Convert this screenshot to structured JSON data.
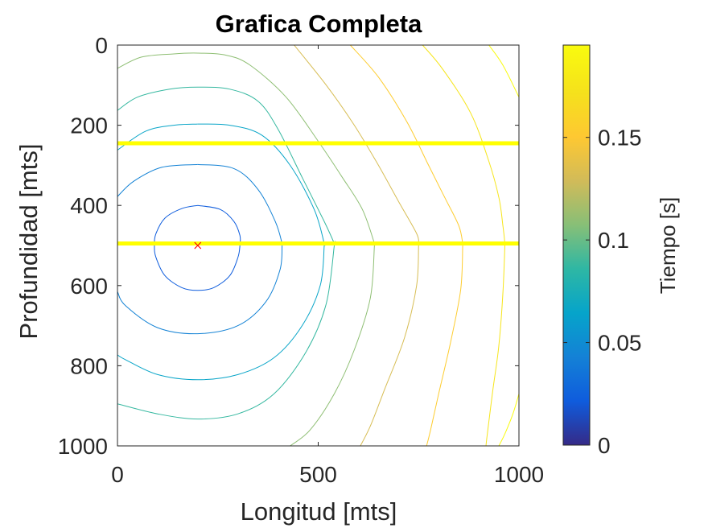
{
  "chart_data": {
    "type": "contour",
    "title": "Grafica Completa",
    "xlabel": "Longitud [mts]",
    "ylabel": "Profundidad [mts]",
    "xlim": [
      0,
      1000
    ],
    "ylim": [
      0,
      1000
    ],
    "y_reversed": true,
    "xticks": [
      0,
      500,
      1000
    ],
    "xtick_labels": [
      "0",
      "500",
      "1000"
    ],
    "yticks": [
      0,
      200,
      400,
      600,
      800,
      1000
    ],
    "ytick_labels": [
      "0",
      "200",
      "400",
      "600",
      "800",
      "1000"
    ],
    "grid": false,
    "colormap": "parula",
    "colorbar": {
      "label": "Tiempo [s]",
      "range": [
        0,
        0.195
      ],
      "ticks": [
        0,
        0.05,
        0.1,
        0.15
      ],
      "tick_labels": [
        "0",
        "0.05",
        "0.1",
        "0.15"
      ]
    },
    "source": {
      "x": 200,
      "y": 500,
      "marker": "x",
      "color": "#ff0000"
    },
    "interfaces": [
      {
        "depth": 245,
        "color": "#ffff00"
      },
      {
        "depth": 495,
        "color": "#ffff00"
      }
    ],
    "contour_levels": [
      0.0219,
      0.0438,
      0.0657,
      0.0876,
      0.1095,
      0.1314,
      0.1533,
      0.1752,
      0.1971
    ],
    "contours": [
      {
        "level": 0.0219,
        "segments": [
          [
            [
              200,
              400
            ],
            [
              256,
              410
            ],
            [
              290,
              440
            ],
            [
              305,
              475
            ],
            [
              305,
              500
            ],
            [
              300,
              530
            ],
            [
              280,
              575
            ],
            [
              240,
              605
            ],
            [
              200,
              612
            ],
            [
              160,
              605
            ],
            [
              118,
              575
            ],
            [
              96,
              530
            ],
            [
              92,
              500
            ],
            [
              96,
              470
            ],
            [
              118,
              432
            ],
            [
              160,
              408
            ],
            [
              200,
              400
            ]
          ]
        ]
      },
      {
        "level": 0.0438,
        "segments": [
          [
            [
              200,
              298
            ],
            [
              290,
              308
            ],
            [
              350,
              360
            ],
            [
              393,
              440
            ],
            [
              410,
              495
            ],
            [
              410,
              500
            ],
            [
              405,
              560
            ],
            [
              370,
              640
            ],
            [
              300,
              700
            ],
            [
              200,
              720
            ],
            [
              100,
              705
            ],
            [
              20,
              650
            ],
            [
              0,
              615
            ]
          ],
          [
            [
              0,
              378
            ],
            [
              40,
              340
            ],
            [
              110,
              305
            ],
            [
              200,
              298
            ]
          ]
        ]
      },
      {
        "level": 0.0657,
        "segments": [
          [
            [
              200,
              197
            ],
            [
              280,
              200
            ],
            [
              360,
              225
            ],
            [
              430,
              300
            ],
            [
              490,
              410
            ],
            [
              515,
              495
            ],
            [
              515,
              500
            ],
            [
              505,
              600
            ],
            [
              460,
              700
            ],
            [
              390,
              780
            ],
            [
              300,
              822
            ],
            [
              200,
              835
            ],
            [
              100,
              822
            ],
            [
              20,
              785
            ],
            [
              0,
              773
            ]
          ],
          [
            [
              0,
              262
            ],
            [
              70,
              215
            ],
            [
              140,
              200
            ],
            [
              200,
              197
            ]
          ]
        ]
      },
      {
        "level": 0.0876,
        "segments": [
          [
            [
              0,
              163
            ],
            [
              50,
              130
            ],
            [
              130,
              110
            ],
            [
              200,
              105
            ],
            [
              280,
              110
            ],
            [
              350,
              140
            ],
            [
              400,
              210
            ],
            [
              460,
              330
            ],
            [
              515,
              440
            ],
            [
              540,
              495
            ],
            [
              540,
              500
            ],
            [
              520,
              645
            ],
            [
              470,
              765
            ],
            [
              390,
              870
            ],
            [
              300,
              920
            ],
            [
              200,
              933
            ],
            [
              100,
              920
            ],
            [
              0,
              895
            ]
          ]
        ]
      },
      {
        "level": 0.1095,
        "segments": [
          [
            [
              0,
              58
            ],
            [
              60,
              30
            ],
            [
              140,
              22
            ],
            [
              200,
              20
            ],
            [
              270,
              25
            ],
            [
              330,
              50
            ],
            [
              420,
              130
            ],
            [
              500,
              240
            ],
            [
              560,
              330
            ],
            [
              610,
              410
            ],
            [
              640,
              495
            ],
            [
              640,
              500
            ],
            [
              630,
              630
            ],
            [
              590,
              760
            ],
            [
              540,
              870
            ],
            [
              480,
              960
            ],
            [
              430,
              1000
            ]
          ]
        ]
      },
      {
        "level": 0.1314,
        "segments": [
          [
            [
              440,
              0
            ],
            [
              520,
              100
            ],
            [
              590,
              200
            ],
            [
              650,
              300
            ],
            [
              700,
              390
            ],
            [
              745,
              470
            ],
            [
              750,
              495
            ],
            [
              750,
              500
            ],
            [
              745,
              600
            ],
            [
              715,
              730
            ],
            [
              665,
              860
            ],
            [
              630,
              950
            ],
            [
              605,
              1000
            ]
          ]
        ]
      },
      {
        "level": 0.1533,
        "segments": [
          [
            [
              580,
              0
            ],
            [
              650,
              80
            ],
            [
              720,
              190
            ],
            [
              775,
              300
            ],
            [
              815,
              380
            ],
            [
              850,
              450
            ],
            [
              860,
              495
            ],
            [
              860,
              500
            ],
            [
              855,
              610
            ],
            [
              830,
              740
            ],
            [
              800,
              870
            ],
            [
              780,
              960
            ],
            [
              770,
              1000
            ]
          ]
        ]
      },
      {
        "level": 0.1752,
        "segments": [
          [
            [
              760,
              0
            ],
            [
              810,
              60
            ],
            [
              880,
              170
            ],
            [
              925,
              290
            ],
            [
              950,
              380
            ],
            [
              960,
              450
            ],
            [
              965,
              495
            ],
            [
              965,
              500
            ],
            [
              960,
              620
            ],
            [
              950,
              750
            ],
            [
              935,
              860
            ],
            [
              920,
              980
            ],
            [
              918,
              1000
            ]
          ]
        ]
      },
      {
        "level": 0.1971,
        "segments": [
          [
            [
              925,
              0
            ],
            [
              960,
              50
            ],
            [
              1000,
              130
            ]
          ],
          [
            [
              1000,
              870
            ],
            [
              985,
              920
            ],
            [
              965,
              970
            ],
            [
              950,
              1000
            ]
          ]
        ]
      }
    ]
  }
}
